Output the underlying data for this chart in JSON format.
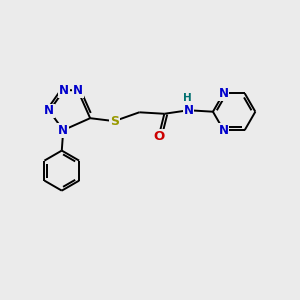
{
  "bg_color": "#ebebeb",
  "bond_color": "#000000",
  "N_color": "#0000cc",
  "S_color": "#999900",
  "O_color": "#cc0000",
  "H_color": "#007070",
  "font_size": 8.5,
  "line_width": 1.4,
  "figsize": [
    3.0,
    3.0
  ],
  "dpi": 100,
  "xlim": [
    0,
    10
  ],
  "ylim": [
    0,
    10
  ]
}
